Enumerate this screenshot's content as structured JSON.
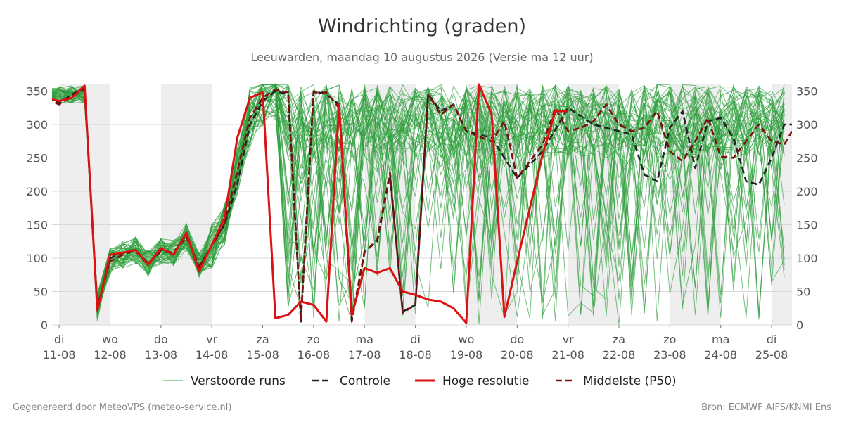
{
  "chart_data": {
    "type": "line",
    "title": "Windrichting (graden)",
    "subtitle": "Leeuwarden, maandag 10 augustus 2026 (Versie ma 12 uur)",
    "ylim": [
      0,
      360
    ],
    "yticks": [
      0,
      50,
      100,
      150,
      200,
      250,
      300,
      350
    ],
    "xlim": [
      -0.14,
      14.4
    ],
    "x_ticks": [
      {
        "x": 0,
        "day": "di",
        "date": "11-08"
      },
      {
        "x": 1,
        "day": "wo",
        "date": "12-08"
      },
      {
        "x": 2,
        "day": "do",
        "date": "13-08"
      },
      {
        "x": 3,
        "day": "vr",
        "date": "14-08"
      },
      {
        "x": 4,
        "day": "za",
        "date": "15-08"
      },
      {
        "x": 5,
        "day": "zo",
        "date": "16-08"
      },
      {
        "x": 6,
        "day": "ma",
        "date": "17-08"
      },
      {
        "x": 7,
        "day": "di",
        "date": "18-08"
      },
      {
        "x": 8,
        "day": "wo",
        "date": "19-08"
      },
      {
        "x": 9,
        "day": "do",
        "date": "20-08"
      },
      {
        "x": 10,
        "day": "vr",
        "date": "21-08"
      },
      {
        "x": 11,
        "day": "za",
        "date": "22-08"
      },
      {
        "x": 12,
        "day": "zo",
        "date": "23-08"
      },
      {
        "x": 13,
        "day": "ma",
        "date": "24-08"
      },
      {
        "x": 14,
        "day": "di",
        "date": "25-08"
      }
    ],
    "shaded_bands": [
      [
        0,
        1
      ],
      [
        2,
        3
      ],
      [
        6,
        7
      ],
      [
        8,
        9
      ],
      [
        10,
        11
      ],
      [
        12,
        13
      ],
      [
        14,
        14.4
      ]
    ],
    "grid": true,
    "legend_position": "bottom",
    "series": [
      {
        "name": "Controle",
        "style": "dashed",
        "color": "#222222",
        "x": [
          -0.25,
          0,
          0.25,
          0.5,
          0.75,
          1,
          1.25,
          1.5,
          1.75,
          2,
          2.25,
          2.5,
          2.75,
          3,
          3.25,
          3.5,
          3.75,
          4,
          4.25,
          4.5,
          4.75,
          5,
          5.25,
          5.5,
          5.75,
          6,
          6.25,
          6.5,
          6.75,
          7,
          7.25,
          7.5,
          7.75,
          8,
          8.5,
          9,
          9.5,
          10,
          10.5,
          11,
          11.25,
          11.5,
          11.75,
          12,
          12.25,
          12.5,
          12.75,
          13,
          13.25,
          13.5,
          13.75,
          14,
          14.25,
          14.4
        ],
        "y": [
          340,
          332,
          345,
          355,
          25,
          100,
          108,
          110,
          92,
          112,
          108,
          135,
          85,
          120,
          150,
          210,
          300,
          335,
          350,
          345,
          5,
          350,
          345,
          330,
          8,
          110,
          125,
          225,
          20,
          30,
          345,
          320,
          330,
          290,
          280,
          220,
          260,
          325,
          300,
          290,
          285,
          225,
          215,
          295,
          320,
          235,
          305,
          310,
          280,
          215,
          210,
          250,
          300,
          300
        ]
      },
      {
        "name": "Hoge resolutie",
        "style": "solid",
        "color": "#dd1111",
        "x": [
          -0.25,
          0,
          0.25,
          0.5,
          0.75,
          1,
          1.25,
          1.5,
          1.75,
          2,
          2.25,
          2.5,
          2.75,
          3,
          3.25,
          3.5,
          3.75,
          4,
          4.25,
          4.5,
          4.75,
          5,
          5.25,
          5.5,
          5.75,
          6,
          6.25,
          6.5,
          6.75,
          7,
          7.25,
          7.5,
          7.75,
          8,
          8.25,
          8.5,
          8.75,
          9,
          9.25,
          9.5,
          9.75,
          10
        ],
        "y": [
          340,
          335,
          340,
          358,
          22,
          105,
          108,
          112,
          90,
          115,
          105,
          138,
          80,
          120,
          160,
          280,
          340,
          348,
          10,
          15,
          35,
          30,
          5,
          330,
          15,
          85,
          78,
          85,
          50,
          45,
          38,
          35,
          25,
          3,
          360,
          315,
          12,
          95,
          175,
          255,
          320,
          320
        ]
      },
      {
        "name": "Middelste (P50)",
        "style": "dashed",
        "color": "#7a1010",
        "x": [
          -0.25,
          0,
          0.25,
          0.5,
          0.75,
          1,
          1.25,
          1.5,
          1.75,
          2,
          2.25,
          2.5,
          2.75,
          3,
          3.25,
          3.5,
          3.75,
          4,
          4.25,
          4.5,
          4.75,
          5,
          5.25,
          5.5,
          5.75,
          6,
          6.25,
          6.5,
          6.75,
          7,
          7.25,
          7.5,
          7.75,
          8,
          8.25,
          8.5,
          8.75,
          9,
          9.25,
          9.5,
          9.75,
          10,
          10.25,
          10.5,
          10.75,
          11,
          11.25,
          11.5,
          11.75,
          12,
          12.25,
          12.5,
          12.75,
          13,
          13.25,
          13.5,
          13.75,
          14,
          14.25,
          14.4
        ],
        "y": [
          338,
          330,
          342,
          352,
          28,
          95,
          105,
          112,
          92,
          110,
          108,
          132,
          88,
          118,
          152,
          230,
          310,
          340,
          352,
          348,
          5,
          348,
          348,
          325,
          5,
          108,
          128,
          228,
          18,
          30,
          345,
          315,
          330,
          290,
          282,
          275,
          305,
          220,
          245,
          270,
          325,
          290,
          295,
          305,
          330,
          300,
          290,
          295,
          320,
          260,
          245,
          275,
          310,
          252,
          250,
          275,
          300,
          275,
          270,
          290
        ]
      }
    ],
    "ensemble": {
      "name": "Verstoorde runs",
      "color": "#2e9e3c",
      "member_count": 50
    }
  },
  "footer": {
    "left": "Gegenereerd door MeteoVPS (meteo-service.nl)",
    "right": "Bron: ECMWF AIFS/KNMI Ens"
  },
  "colors": {
    "ensemble": "#2e9e3c",
    "control": "#222222",
    "hires": "#dd1111",
    "median": "#7a1010",
    "band": "#eeeeee"
  }
}
